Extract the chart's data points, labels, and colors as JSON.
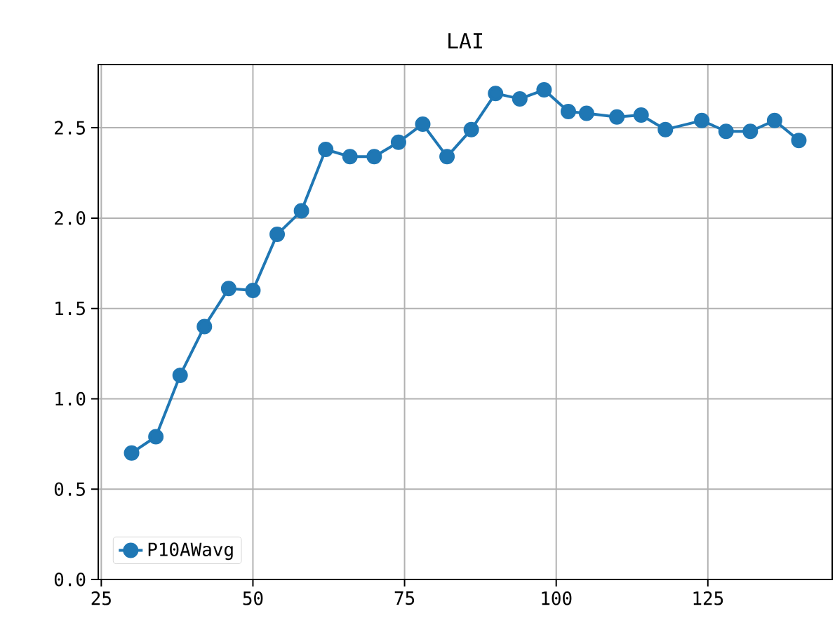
{
  "chart_data": {
    "type": "line",
    "title": "LAI",
    "x": [
      30,
      34,
      38,
      42,
      46,
      50,
      54,
      58,
      62,
      66,
      70,
      74,
      78,
      82,
      86,
      90,
      94,
      98,
      102,
      105,
      110,
      114,
      118,
      124,
      128,
      132,
      136,
      140
    ],
    "series": [
      {
        "name": "P10AWavg",
        "color": "#1f77b4",
        "values": [
          0.7,
          0.79,
          1.13,
          1.4,
          1.61,
          1.6,
          1.91,
          2.04,
          2.38,
          2.34,
          2.34,
          2.42,
          2.52,
          2.34,
          2.49,
          2.69,
          2.66,
          2.71,
          2.59,
          2.58,
          2.56,
          2.57,
          2.49,
          2.54,
          2.48,
          2.48,
          2.54,
          2.43
        ]
      }
    ],
    "xlim": [
      24.5,
      145.5
    ],
    "ylim": [
      0,
      2.85
    ],
    "xticks": [
      25,
      50,
      75,
      100,
      125
    ],
    "yticks": [
      {
        "value": 0,
        "label": "0.0"
      },
      {
        "value": 0.5,
        "label": "0.5"
      },
      {
        "value": 1.0,
        "label": "1.0"
      },
      {
        "value": 1.5,
        "label": "1.5"
      },
      {
        "value": 2.0,
        "label": "2.0"
      },
      {
        "value": 2.5,
        "label": "2.5"
      }
    ],
    "grid": true,
    "legend": "bottom left",
    "marker": "circle",
    "line_style": "solid"
  }
}
